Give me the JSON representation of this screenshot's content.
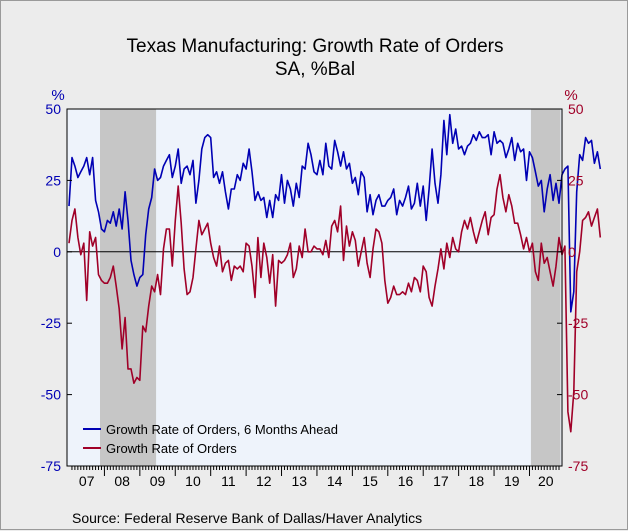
{
  "chart_data": {
    "type": "line",
    "title": "Texas Manufacturing: Growth Rate of Orders",
    "subtitle": "SA, %Bal",
    "source": "Source:  Federal Reserve Bank of Dallas/Haver Analytics",
    "left_axis": {
      "label": "%",
      "color": "#0000b4",
      "ticks": [
        50,
        25,
        0,
        -25,
        -50,
        -75
      ],
      "ylim": [
        -75,
        50
      ]
    },
    "right_axis": {
      "label": "%",
      "color": "#a00028",
      "ticks": [
        50,
        25,
        0,
        -25,
        -50,
        -75
      ],
      "ylim": [
        -75,
        50
      ]
    },
    "x_range": [
      "2007-01",
      "2020-11"
    ],
    "year_labels": [
      "07",
      "08",
      "09",
      "10",
      "11",
      "12",
      "13",
      "14",
      "15",
      "16",
      "17",
      "18",
      "19",
      "20"
    ],
    "recessions": [
      {
        "start": "2007-12",
        "end": "2009-06"
      },
      {
        "start": "2020-02",
        "end": "2020-11"
      }
    ],
    "grid": false,
    "zero_line": true,
    "legend_position": "bottom-left",
    "series": [
      {
        "name": "Growth Rate of Orders, 6 Months Ahead",
        "color": "#0000b4",
        "start": "2007-01",
        "values": [
          16,
          33,
          30,
          26,
          28,
          30,
          33,
          27,
          33,
          18,
          14,
          8,
          7,
          11,
          10,
          14,
          9,
          15,
          8,
          21,
          11,
          -3,
          -8,
          -12,
          -9,
          -8,
          6,
          15,
          19,
          29,
          25,
          26,
          30,
          32,
          34,
          26,
          30,
          36,
          24,
          29,
          30,
          27,
          32,
          17,
          25,
          36,
          40,
          41,
          40,
          26,
          28,
          24,
          28,
          21,
          15,
          22,
          22,
          27,
          25,
          31,
          29,
          36,
          28,
          18,
          21,
          18,
          19,
          12,
          18,
          12,
          20,
          18,
          27,
          17,
          25,
          22,
          16,
          24,
          19,
          30,
          29,
          38,
          34,
          28,
          27,
          32,
          27,
          38,
          30,
          29,
          39,
          35,
          30,
          35,
          29,
          31,
          24,
          26,
          20,
          28,
          26,
          14,
          20,
          13,
          18,
          20,
          16,
          16,
          18,
          19,
          22,
          13,
          18,
          16,
          19,
          23,
          15,
          17,
          24,
          16,
          23,
          11,
          22,
          36,
          24,
          17,
          27,
          46,
          34,
          48,
          38,
          43,
          36,
          37,
          34,
          37,
          38,
          41,
          39,
          42,
          40,
          40,
          41,
          34,
          42,
          38,
          39,
          38,
          33,
          36,
          40,
          32,
          38,
          35,
          36,
          25,
          35,
          33,
          28,
          23,
          25,
          14,
          22,
          27,
          18,
          24,
          17,
          27,
          29,
          30,
          -21,
          -14,
          21,
          34,
          32,
          40,
          38,
          39,
          31,
          35,
          29
        ]
      },
      {
        "name": "Growth Rate of Orders",
        "color": "#a00028",
        "start": "2007-01",
        "values": [
          3,
          11,
          15,
          5,
          -1,
          3,
          -17,
          7,
          2,
          5,
          -8,
          -10,
          -11,
          -11,
          -9,
          -5,
          -12,
          -20,
          -34,
          -23,
          -41,
          -41,
          -46,
          -44,
          -45,
          -26,
          -28,
          -19,
          -12,
          -14,
          -8,
          -15,
          1,
          8,
          8,
          -5,
          11,
          23,
          10,
          -6,
          -15,
          -14,
          -9,
          1,
          11,
          6,
          8,
          10,
          3,
          -2,
          -5,
          2,
          -7,
          -4,
          -3,
          -10,
          -5,
          -6,
          -5,
          -7,
          3,
          2,
          -5,
          -16,
          5,
          -9,
          3,
          -2,
          -11,
          -1,
          -19,
          -3,
          -4,
          -3,
          -1,
          3,
          -9,
          -6,
          2,
          -2,
          8,
          0,
          0,
          2,
          1,
          1,
          -1,
          4,
          -2,
          9,
          11,
          7,
          16,
          -3,
          9,
          2,
          7,
          4,
          -5,
          0,
          5,
          -4,
          -9,
          1,
          8,
          7,
          3,
          -10,
          -18,
          -16,
          -12,
          -15,
          -15,
          -14,
          -15,
          -11,
          -14,
          -9,
          -10,
          -14,
          -5,
          -7,
          -16,
          -19,
          -12,
          -6,
          1,
          -6,
          3,
          -2,
          5,
          1,
          0,
          7,
          11,
          8,
          12,
          7,
          3,
          7,
          11,
          14,
          6,
          12,
          13,
          22,
          27,
          19,
          14,
          20,
          16,
          10,
          10,
          6,
          1,
          5,
          0,
          3,
          -7,
          -10,
          3,
          -4,
          -2,
          -7,
          -12,
          -5,
          5,
          -1,
          2,
          -56,
          -63,
          -49,
          -7,
          0,
          11,
          12,
          14,
          9,
          12,
          15,
          5
        ]
      }
    ]
  }
}
